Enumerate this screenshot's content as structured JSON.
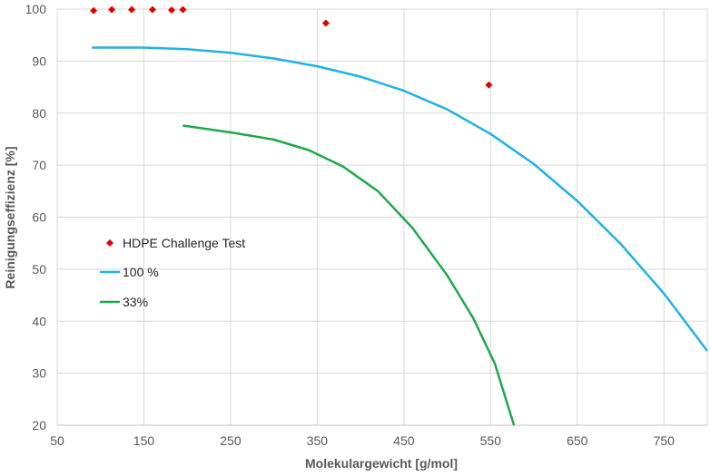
{
  "chart_data": {
    "type": "scatter",
    "title": "",
    "xlabel": "Molekulargewicht [g/mol]",
    "ylabel": "Reinigungseffizienz [%]",
    "xlim": [
      50,
      800
    ],
    "ylim": [
      20,
      100
    ],
    "xticks": [
      50,
      150,
      250,
      350,
      450,
      550,
      650,
      750
    ],
    "yticks": [
      20,
      30,
      40,
      50,
      60,
      70,
      80,
      90,
      100
    ],
    "grid": true,
    "legend_position": "left-middle",
    "series": [
      {
        "name": "HDPE Challenge Test",
        "kind": "scatter",
        "marker": "diamond",
        "color": "#e00000",
        "points": [
          {
            "x": 92,
            "y": 99.7
          },
          {
            "x": 113,
            "y": 99.9
          },
          {
            "x": 136,
            "y": 99.9
          },
          {
            "x": 160,
            "y": 99.9
          },
          {
            "x": 182,
            "y": 99.8
          },
          {
            "x": 195,
            "y": 99.9
          },
          {
            "x": 360,
            "y": 97.3
          },
          {
            "x": 548,
            "y": 85.4
          }
        ]
      },
      {
        "name": "100 %",
        "kind": "line",
        "color": "#1fb2ea",
        "points": [
          {
            "x": 90,
            "y": 92.6
          },
          {
            "x": 150,
            "y": 92.6
          },
          {
            "x": 200,
            "y": 92.3
          },
          {
            "x": 250,
            "y": 91.6
          },
          {
            "x": 300,
            "y": 90.5
          },
          {
            "x": 350,
            "y": 89.0
          },
          {
            "x": 400,
            "y": 87.0
          },
          {
            "x": 450,
            "y": 84.3
          },
          {
            "x": 500,
            "y": 80.7
          },
          {
            "x": 550,
            "y": 76.0
          },
          {
            "x": 600,
            "y": 70.2
          },
          {
            "x": 650,
            "y": 63.1
          },
          {
            "x": 700,
            "y": 54.9
          },
          {
            "x": 750,
            "y": 45.3
          },
          {
            "x": 800,
            "y": 34.3
          }
        ]
      },
      {
        "name": "33%",
        "kind": "line",
        "color": "#1fa84a",
        "points": [
          {
            "x": 195,
            "y": 77.6
          },
          {
            "x": 250,
            "y": 76.3
          },
          {
            "x": 300,
            "y": 74.9
          },
          {
            "x": 340,
            "y": 72.9
          },
          {
            "x": 380,
            "y": 69.7
          },
          {
            "x": 420,
            "y": 65.0
          },
          {
            "x": 460,
            "y": 57.9
          },
          {
            "x": 500,
            "y": 48.8
          },
          {
            "x": 530,
            "y": 40.6
          },
          {
            "x": 555,
            "y": 31.8
          },
          {
            "x": 577,
            "y": 20.0
          }
        ]
      }
    ]
  }
}
